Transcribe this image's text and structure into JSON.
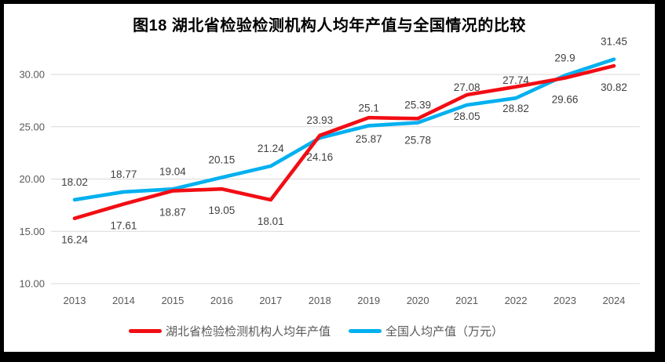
{
  "header": {
    "title": "图18  湖北省检验检测机构人均年产值与全国情况的比较"
  },
  "chart_data": {
    "type": "line",
    "title": "图18  湖北省检验检测机构人均年产值与全国情况的比较",
    "categories": [
      "2013",
      "2014",
      "2015",
      "2016",
      "2017",
      "2018",
      "2019",
      "2020",
      "2021",
      "2022",
      "2023",
      "2024"
    ],
    "series": [
      {
        "name": "湖北省检验检测机构人均年产值",
        "color": "#F20D14",
        "values": [
          16.24,
          17.61,
          18.87,
          19.05,
          18.01,
          24.16,
          25.87,
          25.78,
          28.05,
          28.82,
          29.66,
          30.82
        ],
        "labels": [
          "16.24",
          "17.61",
          "18.87",
          "19.05",
          "18.01",
          "24.16",
          "25.87",
          "25.78",
          "28.05",
          "28.82",
          "29.66",
          "30.82"
        ],
        "label_position": "below"
      },
      {
        "name": "全国人均产值（万元）",
        "color": "#00B0F0",
        "values": [
          18.02,
          18.77,
          19.04,
          20.15,
          21.24,
          23.93,
          25.1,
          25.39,
          27.08,
          27.74,
          29.9,
          31.45
        ],
        "labels": [
          "18.02",
          "18.77",
          "19.04",
          "20.15",
          "21.24",
          "23.93",
          "25.1",
          "25.39",
          "27.08",
          "27.74",
          "29.9",
          "31.45"
        ],
        "label_position": "above"
      }
    ],
    "yticks": [
      "10.00",
      "15.00",
      "20.00",
      "25.00",
      "30.00"
    ],
    "ylim": [
      10,
      33
    ],
    "grid": true,
    "legend_position": "bottom",
    "colors": {
      "gridline": "#D9D9D9",
      "axis_text": "#595959",
      "data_label": "#404040",
      "title_text": "#000000"
    }
  }
}
